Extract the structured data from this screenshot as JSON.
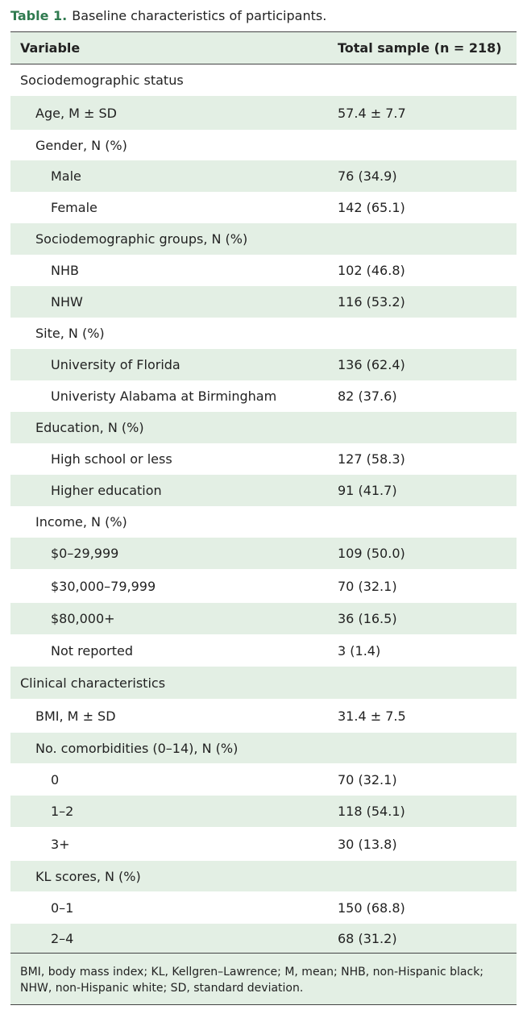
{
  "caption": {
    "label": "Table 1.",
    "text": "Baseline characteristics of participants."
  },
  "header": {
    "variable": "Variable",
    "total": "Total sample (n = 218)"
  },
  "rows": [
    {
      "label": "Sociodemographic status",
      "value": "",
      "level": 0,
      "shaded": false,
      "h": 39
    },
    {
      "label": "Age, M ± SD",
      "value": "57.4 ± 7.7",
      "level": 1,
      "shaded": true,
      "h": 42
    },
    {
      "label": "Gender, N (%)",
      "value": "",
      "level": 1,
      "shaded": false,
      "h": 38
    },
    {
      "label": "Male",
      "value": "76 (34.9)",
      "level": 2,
      "shaded": true,
      "h": 39
    },
    {
      "label": "Female",
      "value": "142 (65.1)",
      "level": 2,
      "shaded": false,
      "h": 39
    },
    {
      "label": "Sociodemographic groups, N (%)",
      "value": "",
      "level": 1,
      "shaded": true,
      "h": 39
    },
    {
      "label": "NHB",
      "value": "102 (46.8)",
      "level": 2,
      "shaded": false,
      "h": 39
    },
    {
      "label": "NHW",
      "value": "116 (53.2)",
      "level": 2,
      "shaded": true,
      "h": 39
    },
    {
      "label": "Site, N (%)",
      "value": "",
      "level": 1,
      "shaded": false,
      "h": 39
    },
    {
      "label": "University of Florida",
      "value": "136 (62.4)",
      "level": 2,
      "shaded": true,
      "h": 39
    },
    {
      "label": "Univeristy Alabama at Birmingham",
      "value": "82 (37.6)",
      "level": 2,
      "shaded": false,
      "h": 39
    },
    {
      "label": "Education, N (%)",
      "value": "",
      "level": 1,
      "shaded": true,
      "h": 39
    },
    {
      "label": "High school or less",
      "value": "127 (58.3)",
      "level": 2,
      "shaded": false,
      "h": 39
    },
    {
      "label": "Higher education",
      "value": "91 (41.7)",
      "level": 2,
      "shaded": true,
      "h": 39
    },
    {
      "label": "Income, N (%)",
      "value": "",
      "level": 1,
      "shaded": false,
      "h": 39
    },
    {
      "label": "$0–29,999",
      "value": "109 (50.0)",
      "level": 2,
      "shaded": true,
      "h": 39
    },
    {
      "label": "$30,000–79,999",
      "value": "70 (32.1)",
      "level": 2,
      "shaded": false,
      "h": 42
    },
    {
      "label": "$80,000+",
      "value": "36 (16.5)",
      "level": 2,
      "shaded": true,
      "h": 39
    },
    {
      "label": "Not reported",
      "value": "3 (1.4)",
      "level": 2,
      "shaded": false,
      "h": 40
    },
    {
      "label": "Clinical characteristics",
      "value": "",
      "level": 0,
      "shaded": true,
      "h": 40
    },
    {
      "label": "BMI, M ± SD",
      "value": "31.4 ± 7.5",
      "level": 1,
      "shaded": false,
      "h": 42
    },
    {
      "label": "No. comorbidities (0–14), N (%)",
      "value": "",
      "level": 1,
      "shaded": true,
      "h": 38
    },
    {
      "label": "0",
      "value": "70 (32.1)",
      "level": 2,
      "shaded": false,
      "h": 40
    },
    {
      "label": "1–2",
      "value": "118 (54.1)",
      "level": 2,
      "shaded": true,
      "h": 39
    },
    {
      "label": "3+",
      "value": "30 (13.8)",
      "level": 2,
      "shaded": false,
      "h": 42
    },
    {
      "label": "KL scores, N (%)",
      "value": "",
      "level": 1,
      "shaded": true,
      "h": 38
    },
    {
      "label": "0–1",
      "value": "150 (68.8)",
      "level": 2,
      "shaded": false,
      "h": 40
    },
    {
      "label": "2–4",
      "value": "68 (31.2)",
      "level": 2,
      "shaded": true,
      "h": 36
    }
  ],
  "footnote": "BMI, body mass index; KL, Kellgren–Lawrence; M, mean; NHB, non-Hispanic black; NHW, non-Hispanic white; SD, standard deviation."
}
